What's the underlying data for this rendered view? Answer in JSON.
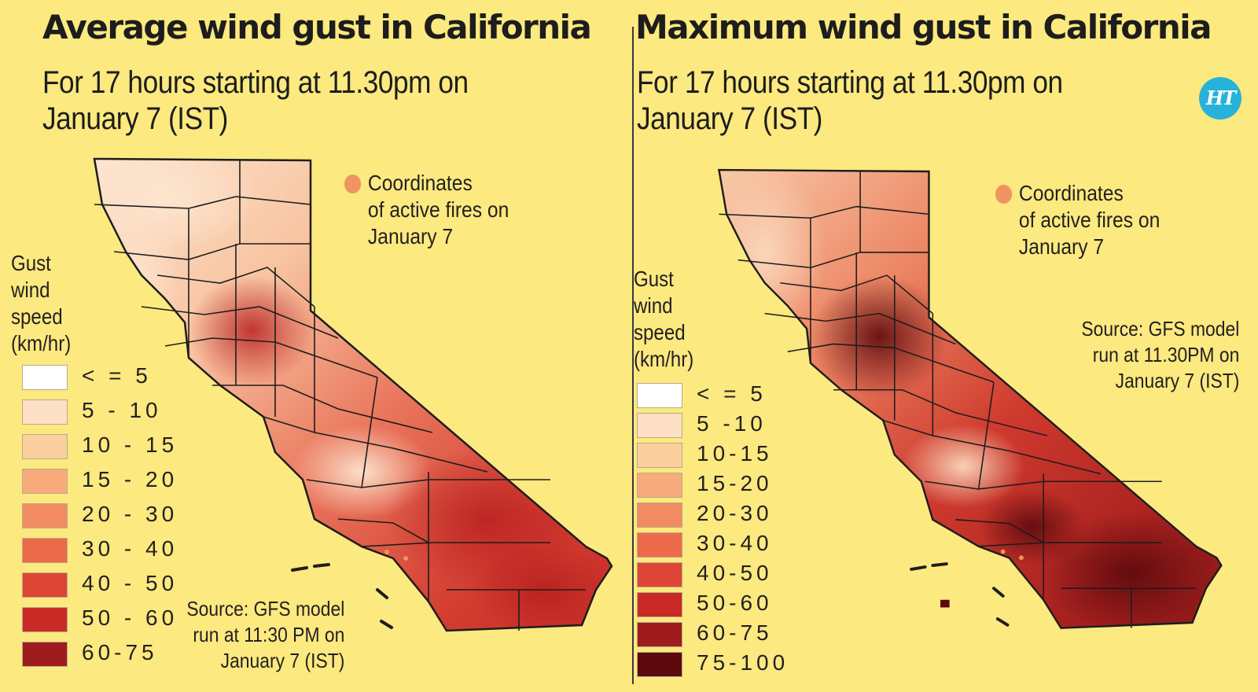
{
  "panels": [
    {
      "title": "Average wind gust in California",
      "subtitle": "For 17 hours starting at 11.30pm on January 7 (IST)",
      "fires_note": [
        "Coordinates",
        "of active fires on",
        "January 7"
      ],
      "legend_title": [
        "Gust",
        "wind",
        "speed",
        "(km/hr)"
      ],
      "legend": [
        {
          "label": "< = 5",
          "color": "#ffffff"
        },
        {
          "label": "5 - 10",
          "color": "#fde0c6"
        },
        {
          "label": "10 - 15",
          "color": "#fbcf9e"
        },
        {
          "label": "15 - 20",
          "color": "#f7ab7d"
        },
        {
          "label": "20 - 30",
          "color": "#f38b62"
        },
        {
          "label": "30 - 40",
          "color": "#ec6a49"
        },
        {
          "label": "40 - 50",
          "color": "#df4536"
        },
        {
          "label": "50 - 60",
          "color": "#c92a25"
        },
        {
          "label": "60-75",
          "color": "#9e1c1e"
        }
      ],
      "source": [
        "Source: GFS model",
        "run at 11:30 PM on",
        "January 7 (IST)"
      ]
    },
    {
      "title": "Maximum wind gust in California",
      "subtitle": "For 17 hours starting at 11.30pm on January 7 (IST)",
      "fires_note": [
        "Coordinates",
        "of active fires on",
        "January 7"
      ],
      "legend_title": [
        "Gust",
        "wind",
        "speed",
        "(km/hr)"
      ],
      "legend": [
        {
          "label": "< = 5",
          "color": "#ffffff"
        },
        {
          "label": "5 -10",
          "color": "#fde0c6"
        },
        {
          "label": "10-15",
          "color": "#fbcf9e"
        },
        {
          "label": "15-20",
          "color": "#f7ab7d"
        },
        {
          "label": "20-30",
          "color": "#f38b62"
        },
        {
          "label": "30-40",
          "color": "#ec6a49"
        },
        {
          "label": "40-50",
          "color": "#df4536"
        },
        {
          "label": "50-60",
          "color": "#c92a25"
        },
        {
          "label": "60-75",
          "color": "#9e1c1e"
        },
        {
          "label": "75-100",
          "color": "#5c0a0d"
        }
      ],
      "source": [
        "Source: GFS model",
        "run at 11.30PM on",
        "January 7 (IST)"
      ]
    }
  ],
  "logo_text": "HT",
  "colors": {
    "background": "#fce97f",
    "fire_marker": "#ef9461"
  }
}
